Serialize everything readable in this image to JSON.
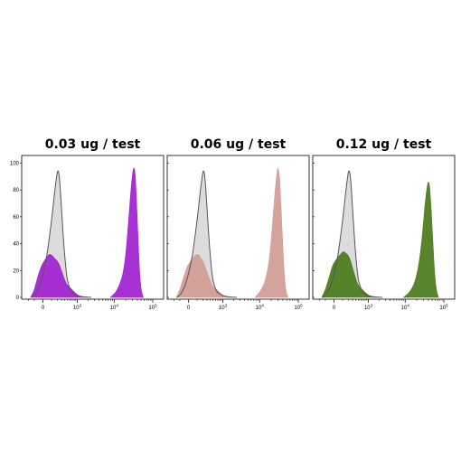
{
  "chart_data": {
    "type": "area",
    "x_scale": "biexponential",
    "x_ticks": [
      {
        "value": 0,
        "label": "0"
      },
      {
        "value": 1000,
        "label": "10",
        "sup": "3"
      },
      {
        "value": 10000,
        "label": "10",
        "sup": "4"
      },
      {
        "value": 100000,
        "label": "10",
        "sup": "5"
      }
    ],
    "y_ticks": [
      0,
      20,
      40,
      60,
      80,
      100
    ],
    "ylim": [
      0,
      105
    ],
    "grid": false,
    "legend": "none",
    "control": {
      "fill": "#dcdcdc",
      "stroke": "#555555",
      "points": [
        [
          -150,
          0
        ],
        [
          -80,
          3
        ],
        [
          -20,
          12
        ],
        [
          30,
          28
        ],
        [
          70,
          45
        ],
        [
          110,
          62
        ],
        [
          150,
          78
        ],
        [
          180,
          88
        ],
        [
          210,
          94
        ],
        [
          240,
          91
        ],
        [
          270,
          80
        ],
        [
          310,
          62
        ],
        [
          360,
          42
        ],
        [
          420,
          25
        ],
        [
          480,
          14
        ],
        [
          560,
          8
        ],
        [
          650,
          4.5
        ],
        [
          760,
          3
        ],
        [
          900,
          1.8
        ],
        [
          1100,
          1
        ],
        [
          1500,
          0.4
        ],
        [
          2500,
          0
        ]
      ]
    },
    "panels": [
      {
        "title": "0.03 ug / test",
        "color": "#a020d0",
        "series": [
          {
            "points": [
              [
                -160,
                0
              ],
              [
                -100,
                6
              ],
              [
                -50,
                16
              ],
              [
                -10,
                24
              ],
              [
                30,
                29
              ],
              [
                70,
                32
              ],
              [
                110,
                31
              ],
              [
                150,
                29
              ],
              [
                200,
                27
              ],
              [
                250,
                24
              ],
              [
                310,
                19
              ],
              [
                380,
                14
              ],
              [
                460,
                10
              ],
              [
                550,
                8
              ],
              [
                640,
                6.5
              ],
              [
                740,
                5
              ],
              [
                850,
                3.5
              ],
              [
                1000,
                2
              ],
              [
                1300,
                0.7
              ],
              [
                2000,
                0
              ]
            ]
          },
          {
            "points": [
              [
                8000,
                0
              ],
              [
                11000,
                4
              ],
              [
                14000,
                10
              ],
              [
                17000,
                18
              ],
              [
                20000,
                32
              ],
              [
                23000,
                52
              ],
              [
                26000,
                72
              ],
              [
                29000,
                88
              ],
              [
                32000,
                96
              ],
              [
                35000,
                92
              ],
              [
                38000,
                72
              ],
              [
                42000,
                42
              ],
              [
                46000,
                18
              ],
              [
                51000,
                5
              ],
              [
                57000,
                0
              ]
            ]
          }
        ]
      },
      {
        "title": "0.06 ug / test",
        "color": "#d09c94",
        "series": [
          {
            "points": [
              [
                -160,
                0
              ],
              [
                -100,
                6
              ],
              [
                -50,
                15
              ],
              [
                -10,
                23
              ],
              [
                30,
                28
              ],
              [
                70,
                31
              ],
              [
                110,
                32
              ],
              [
                150,
                30
              ],
              [
                200,
                27
              ],
              [
                250,
                23
              ],
              [
                310,
                18
              ],
              [
                380,
                13
              ],
              [
                460,
                9
              ],
              [
                550,
                7
              ],
              [
                640,
                6
              ],
              [
                740,
                4.5
              ],
              [
                850,
                3
              ],
              [
                1000,
                1.8
              ],
              [
                1300,
                0.6
              ],
              [
                2000,
                0
              ]
            ]
          },
          {
            "points": [
              [
                7500,
                0
              ],
              [
                10000,
                4
              ],
              [
                13000,
                10
              ],
              [
                16000,
                20
              ],
              [
                19000,
                36
              ],
              [
                22000,
                58
              ],
              [
                25000,
                78
              ],
              [
                28000,
                92
              ],
              [
                30000,
                96
              ],
              [
                33000,
                88
              ],
              [
                36000,
                66
              ],
              [
                40000,
                38
              ],
              [
                44000,
                16
              ],
              [
                49000,
                4
              ],
              [
                55000,
                0
              ]
            ]
          }
        ]
      },
      {
        "title": "0.12 ug / test",
        "color": "#4a7a1a",
        "series": [
          {
            "points": [
              [
                -160,
                0
              ],
              [
                -100,
                6
              ],
              [
                -50,
                15
              ],
              [
                -10,
                24
              ],
              [
                30,
                29
              ],
              [
                70,
                32
              ],
              [
                110,
                34
              ],
              [
                150,
                33
              ],
              [
                200,
                31
              ],
              [
                250,
                27
              ],
              [
                310,
                21
              ],
              [
                380,
                15
              ],
              [
                460,
                10
              ],
              [
                550,
                7.5
              ],
              [
                640,
                6
              ],
              [
                740,
                4.5
              ],
              [
                850,
                3
              ],
              [
                1000,
                1.8
              ],
              [
                1300,
                0.6
              ],
              [
                2000,
                0
              ]
            ]
          },
          {
            "points": [
              [
                9000,
                0
              ],
              [
                13000,
                4
              ],
              [
                17000,
                10
              ],
              [
                21000,
                20
              ],
              [
                25000,
                34
              ],
              [
                29000,
                52
              ],
              [
                33000,
                70
              ],
              [
                37000,
                82
              ],
              [
                40000,
                86
              ],
              [
                43000,
                82
              ],
              [
                47000,
                66
              ],
              [
                52000,
                42
              ],
              [
                58000,
                18
              ],
              [
                65000,
                5
              ],
              [
                73000,
                0
              ]
            ]
          }
        ]
      }
    ]
  }
}
